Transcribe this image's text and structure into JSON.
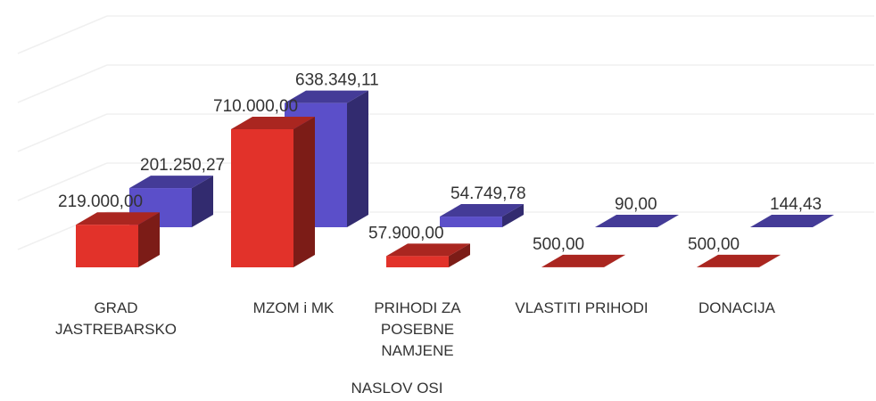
{
  "chart_data": {
    "type": "bar3d",
    "categories": [
      "GRAD JASTREBARSKO",
      "MZOM i MK",
      "PRIHODI ZA POSEBNE NAMJENE",
      "VLASTITI PRIHODI",
      "DONACIJA"
    ],
    "x_label": "NASLOV OSI",
    "series": [
      {
        "color": "#e2322a",
        "values": [
          219000,
          710000,
          57900,
          500,
          500
        ],
        "value_labels": [
          "219.000,00",
          "710.000,00",
          "57.900,00",
          "500,00",
          "500,00"
        ]
      },
      {
        "color": "#5b4fc9",
        "values": [
          201250.27,
          638349.11,
          54749.78,
          90,
          144.43
        ],
        "value_labels": [
          "201.250,27",
          "638.349,11",
          "54.749,78",
          "90,00",
          "144,43"
        ]
      }
    ]
  }
}
